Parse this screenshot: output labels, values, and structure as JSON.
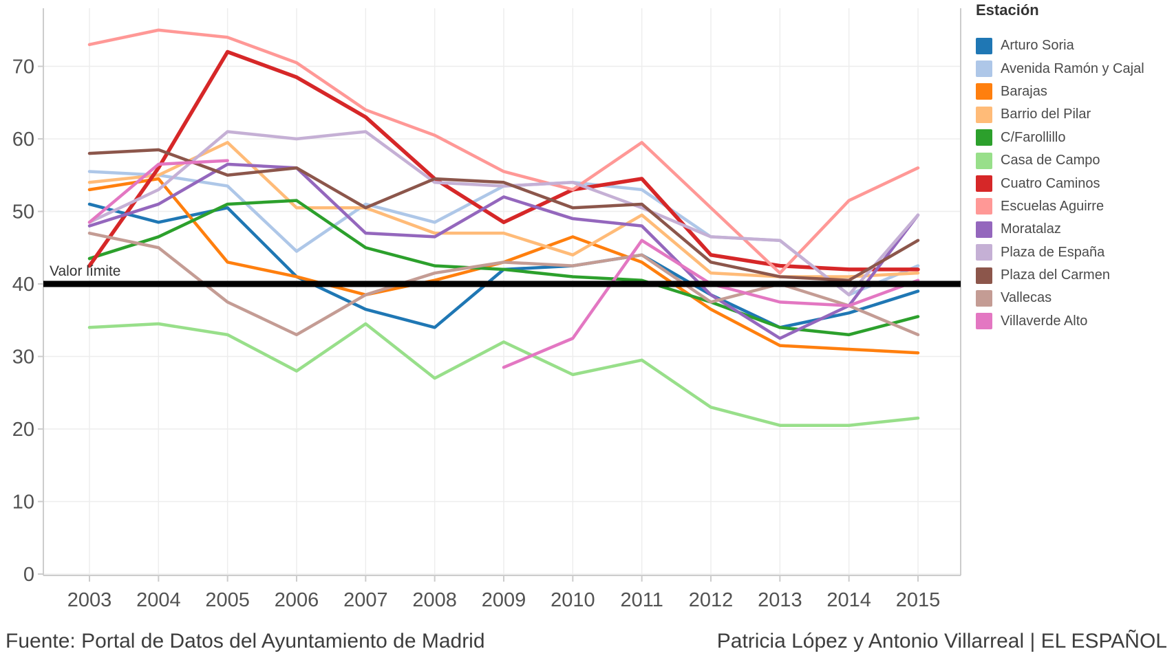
{
  "footer": {
    "source": "Fuente: Portal de Datos del Ayuntamiento de Madrid",
    "credit": "Patricia López y Antonio Villarreal | EL ESPAÑOL"
  },
  "legend": {
    "title": "Estación"
  },
  "reference_line": {
    "label": "Valor límite",
    "value": 40,
    "color": "#000000"
  },
  "axis": {
    "y_ticks": [
      0,
      10,
      20,
      30,
      40,
      50,
      60,
      70
    ],
    "x_ticks": [
      "2003",
      "2004",
      "2005",
      "2006",
      "2007",
      "2008",
      "2009",
      "2010",
      "2011",
      "2012",
      "2013",
      "2014",
      "2015"
    ],
    "tick_label_color": "#525252",
    "grid_color": "#ededed",
    "domain_color": "#cccccc"
  },
  "chart_data": {
    "type": "line",
    "title": "",
    "xlabel": "",
    "ylabel": "",
    "x": [
      2003,
      2004,
      2005,
      2006,
      2007,
      2008,
      2009,
      2010,
      2011,
      2012,
      2013,
      2014,
      2015
    ],
    "ylim": [
      0,
      78
    ],
    "grid": true,
    "legend_position": "right",
    "legend_title": "Estación",
    "reference_line": {
      "label": "Valor límite",
      "value": 40
    },
    "series": [
      {
        "name": "Arturo Soria",
        "color": "#1f77b4",
        "values": [
          51,
          48.5,
          50.5,
          41,
          36.5,
          34,
          42,
          42.5,
          44,
          38.5,
          34,
          36,
          39
        ]
      },
      {
        "name": "Avenida Ramón y Cajal",
        "color": "#aec7e8",
        "values": [
          55.5,
          55,
          53.5,
          44.5,
          51,
          48.5,
          53.5,
          54,
          53,
          46.5,
          46,
          38.5,
          42.5
        ]
      },
      {
        "name": "Barajas",
        "color": "#ff7f0e",
        "values": [
          53,
          54.5,
          43,
          41,
          38.5,
          40.5,
          43,
          46.5,
          43,
          36.5,
          31.5,
          31,
          30.5
        ]
      },
      {
        "name": "Barrio del Pilar",
        "color": "#ffbb78",
        "values": [
          54,
          55,
          59.5,
          50.5,
          50.5,
          47,
          47,
          44,
          49.5,
          41.5,
          41,
          41,
          41.5
        ]
      },
      {
        "name": "C/Farollillo",
        "color": "#2ca02c",
        "values": [
          43.5,
          46.5,
          51,
          51.5,
          45,
          42.5,
          42,
          41,
          40.5,
          37.5,
          34,
          33,
          35.5
        ]
      },
      {
        "name": "Casa de Campo",
        "color": "#98df8a",
        "values": [
          34,
          34.5,
          33,
          28,
          34.5,
          27,
          32,
          27.5,
          29.5,
          23,
          20.5,
          20.5,
          21.5
        ]
      },
      {
        "name": "Cuatro Caminos",
        "color": "#d62728",
        "values": [
          42.5,
          56,
          72,
          68.5,
          63,
          54.5,
          48.5,
          53,
          54.5,
          44,
          42.5,
          42,
          42
        ]
      },
      {
        "name": "Escuelas Aguirre",
        "color": "#ff9896",
        "values": [
          73,
          75,
          74,
          70.5,
          64,
          60.5,
          55.5,
          53,
          59.5,
          50.5,
          41.5,
          51.5,
          56
        ]
      },
      {
        "name": "Moratalaz",
        "color": "#9467bd",
        "values": [
          48,
          51,
          56.5,
          56,
          47,
          46.5,
          52,
          49,
          48,
          38.5,
          32.5,
          37,
          49.5
        ]
      },
      {
        "name": "Plaza de España",
        "color": "#c5b0d5",
        "values": [
          48.5,
          53,
          61,
          60,
          61,
          54,
          53.5,
          54,
          50.5,
          46.5,
          46,
          38.5,
          49.5
        ]
      },
      {
        "name": "Plaza del Carmen",
        "color": "#8c564b",
        "values": [
          58,
          58.5,
          55,
          56,
          50.5,
          54.5,
          54,
          50.5,
          51,
          43,
          41,
          40.5,
          46
        ]
      },
      {
        "name": "Vallecas",
        "color": "#c49c94",
        "values": [
          47,
          45,
          37.5,
          33,
          38.5,
          41.5,
          43,
          42.5,
          44,
          37.5,
          40,
          37,
          33
        ]
      },
      {
        "name": "Villaverde Alto",
        "color": "#e377c2",
        "values": [
          48.5,
          56.5,
          57,
          null,
          null,
          null,
          28.5,
          32.5,
          46,
          40,
          37.5,
          37,
          40.5
        ]
      }
    ]
  }
}
